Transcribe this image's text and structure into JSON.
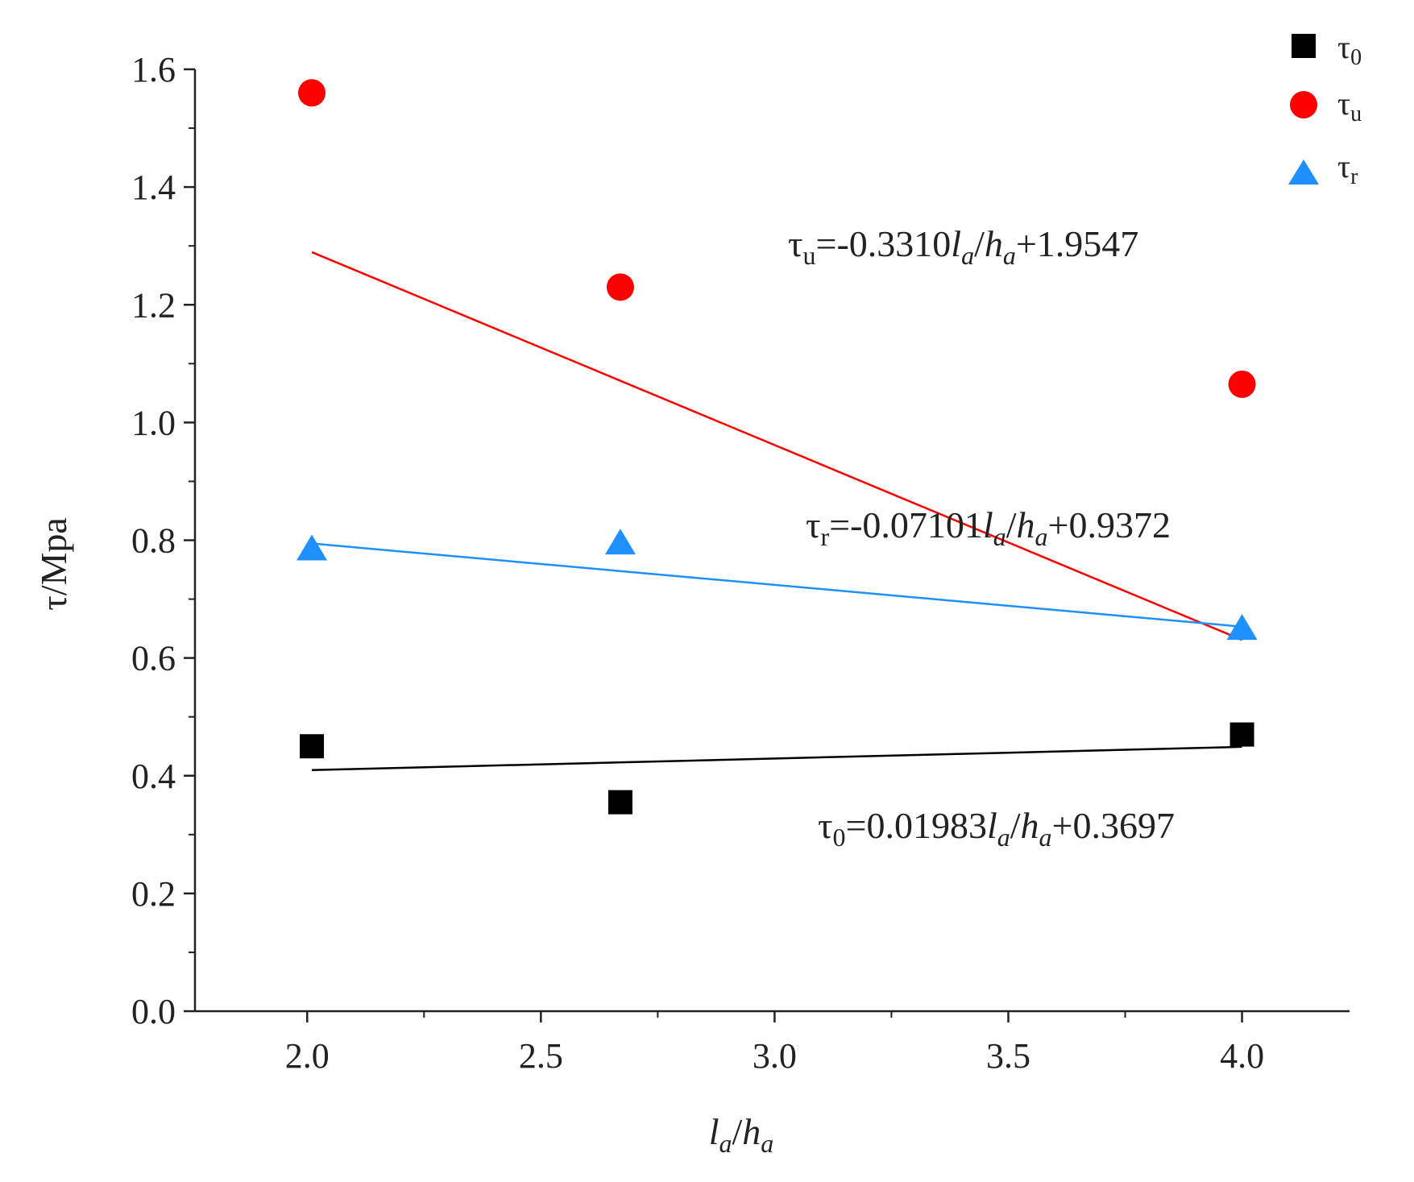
{
  "chart_data": {
    "type": "scatter",
    "title": "",
    "xlabel": {
      "l": "l",
      "l_sub": "a",
      "slash": "/",
      "h": "h",
      "h_sub": "a"
    },
    "ylabel": "τ/Mpa",
    "xlim": [
      1.76,
      4.23
    ],
    "ylim": [
      0.0,
      1.6
    ],
    "x_ticks": [
      2.0,
      2.5,
      3.0,
      3.5,
      4.0
    ],
    "x_tick_labels": [
      "2.0",
      "2.5",
      "3.0",
      "3.5",
      "4.0"
    ],
    "y_ticks": [
      0.0,
      0.2,
      0.4,
      0.6,
      0.8,
      1.0,
      1.2,
      1.4,
      1.6
    ],
    "y_tick_labels": [
      "0.0",
      "0.2",
      "0.4",
      "0.6",
      "0.8",
      "1.0",
      "1.2",
      "1.4",
      "1.6"
    ],
    "legend_position": "top-right",
    "series": [
      {
        "name": "τ0",
        "name_base": "τ",
        "name_sub": "0",
        "marker": "square",
        "color": "#000000",
        "x": [
          2.01,
          2.67,
          4.0
        ],
        "y": [
          0.45,
          0.355,
          0.47
        ],
        "fit": {
          "slope": 0.01983,
          "intercept": 0.3697,
          "x_range": [
            2.01,
            4.0
          ],
          "color": "#000000"
        },
        "equation": {
          "lhs_base": "τ",
          "lhs_sub": "0",
          "eq": "=",
          "coef": "0.01983",
          "l": "l",
          "l_sub": "a",
          "slash": "/",
          "h": "h",
          "h_sub": "a",
          "tail": "+0.3697"
        }
      },
      {
        "name": "τu",
        "name_base": "τ",
        "name_sub": "u",
        "marker": "circle",
        "color": "#ff0000",
        "x": [
          2.01,
          2.67,
          4.0
        ],
        "y": [
          1.56,
          1.23,
          1.065
        ],
        "fit": {
          "slope": -0.331,
          "intercept": 1.9547,
          "x_range": [
            2.01,
            4.0
          ],
          "color": "#ff0000"
        },
        "equation": {
          "lhs_base": "τ",
          "lhs_sub": "u",
          "eq": "=",
          "coef": "-0.3310",
          "l": "l",
          "l_sub": "a",
          "slash": "/",
          "h": "h",
          "h_sub": "a",
          "tail": "+1.9547"
        }
      },
      {
        "name": "τr",
        "name_base": "τ",
        "name_sub": "r",
        "marker": "triangle",
        "color": "#1e90ff",
        "x": [
          2.01,
          2.67,
          4.0
        ],
        "y": [
          0.785,
          0.795,
          0.65
        ],
        "fit": {
          "slope": -0.07101,
          "intercept": 0.9372,
          "x_range": [
            2.01,
            4.0
          ],
          "color": "#1e90ff"
        },
        "equation": {
          "lhs_base": "τ",
          "lhs_sub": "r",
          "eq": "=",
          "coef": "-0.07101",
          "l": "l",
          "l_sub": "a",
          "slash": "/",
          "h": "h",
          "h_sub": "a",
          "tail": "+0.9372"
        }
      }
    ]
  }
}
